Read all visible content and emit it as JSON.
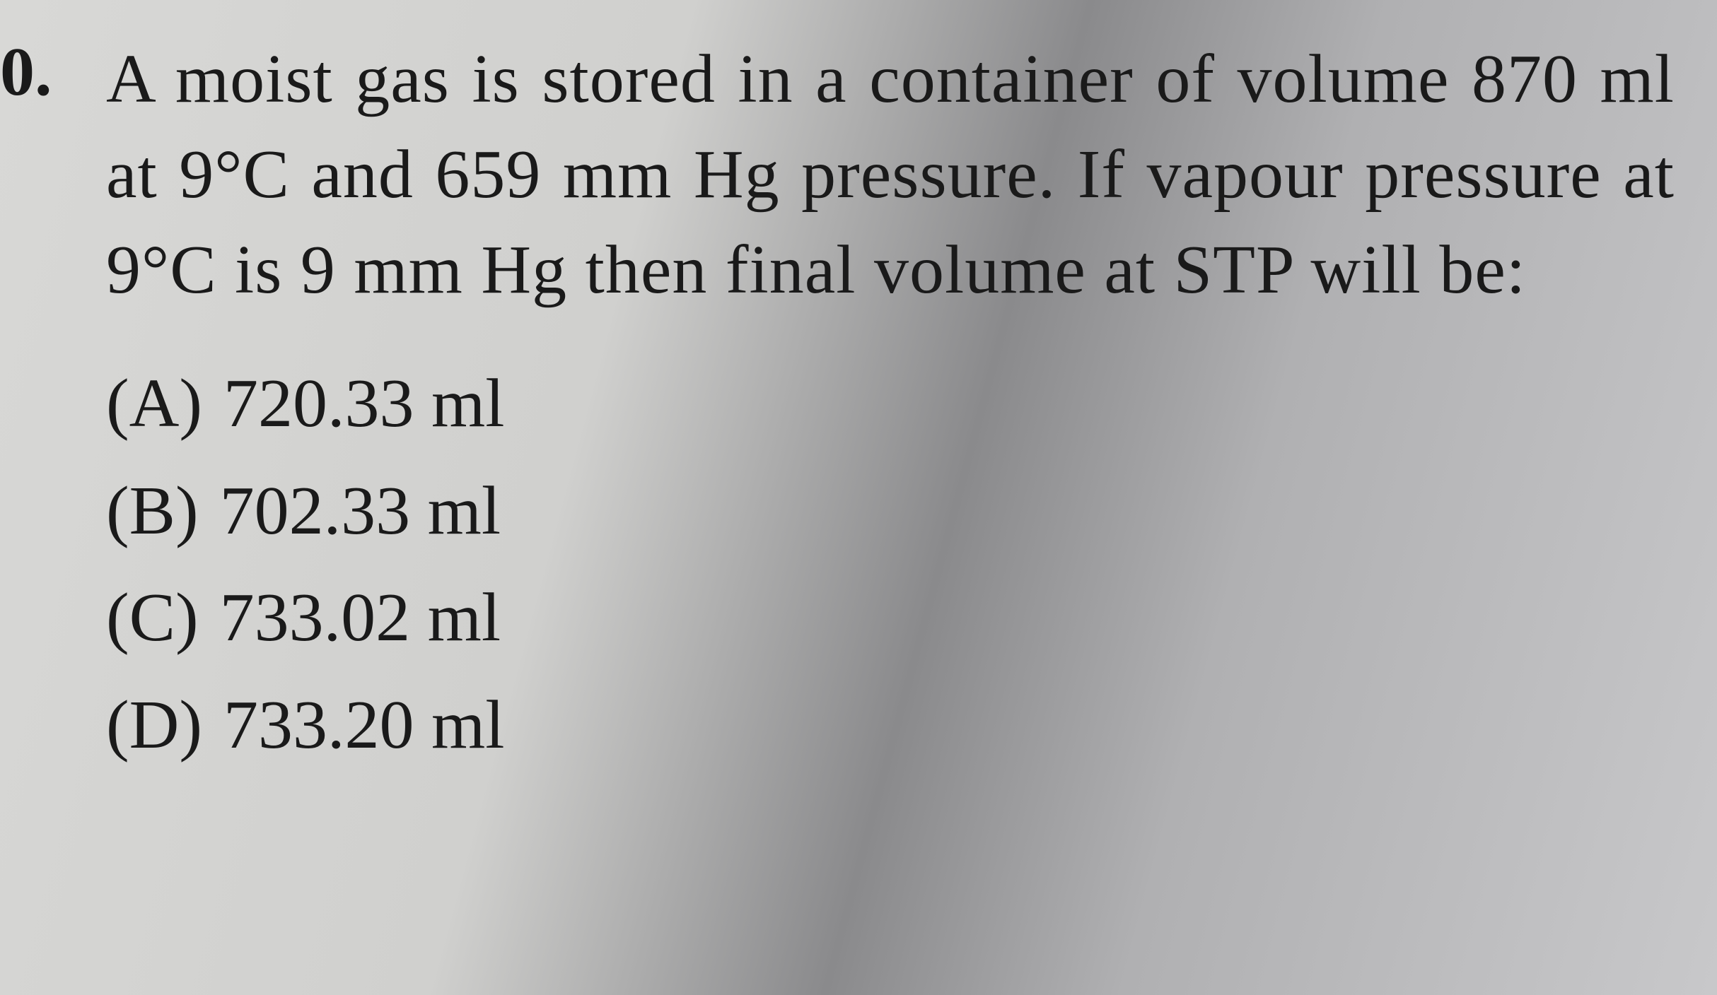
{
  "question": {
    "number": "0.",
    "text": "A moist gas is stored in a container of volume 870 ml at 9°C and 659 mm Hg pressure. If vapour pressure at 9°C is 9 mm Hg then final volume at STP will be:",
    "options": [
      {
        "letter": "(A)",
        "value": "720.33 ml"
      },
      {
        "letter": "(B)",
        "value": "702.33 ml"
      },
      {
        "letter": "(C)",
        "value": "733.02 ml"
      },
      {
        "letter": "(D)",
        "value": "733.20 ml"
      }
    ]
  },
  "styling": {
    "background_gradient": [
      "#d8d8d6",
      "#d0d0ce",
      "#8a8a8c",
      "#b0b0b2",
      "#c8c8ca"
    ],
    "text_color": "#1a1a1a",
    "font_family": "Times New Roman",
    "question_fontsize": 98,
    "option_fontsize": 98,
    "line_height": 1.38
  }
}
